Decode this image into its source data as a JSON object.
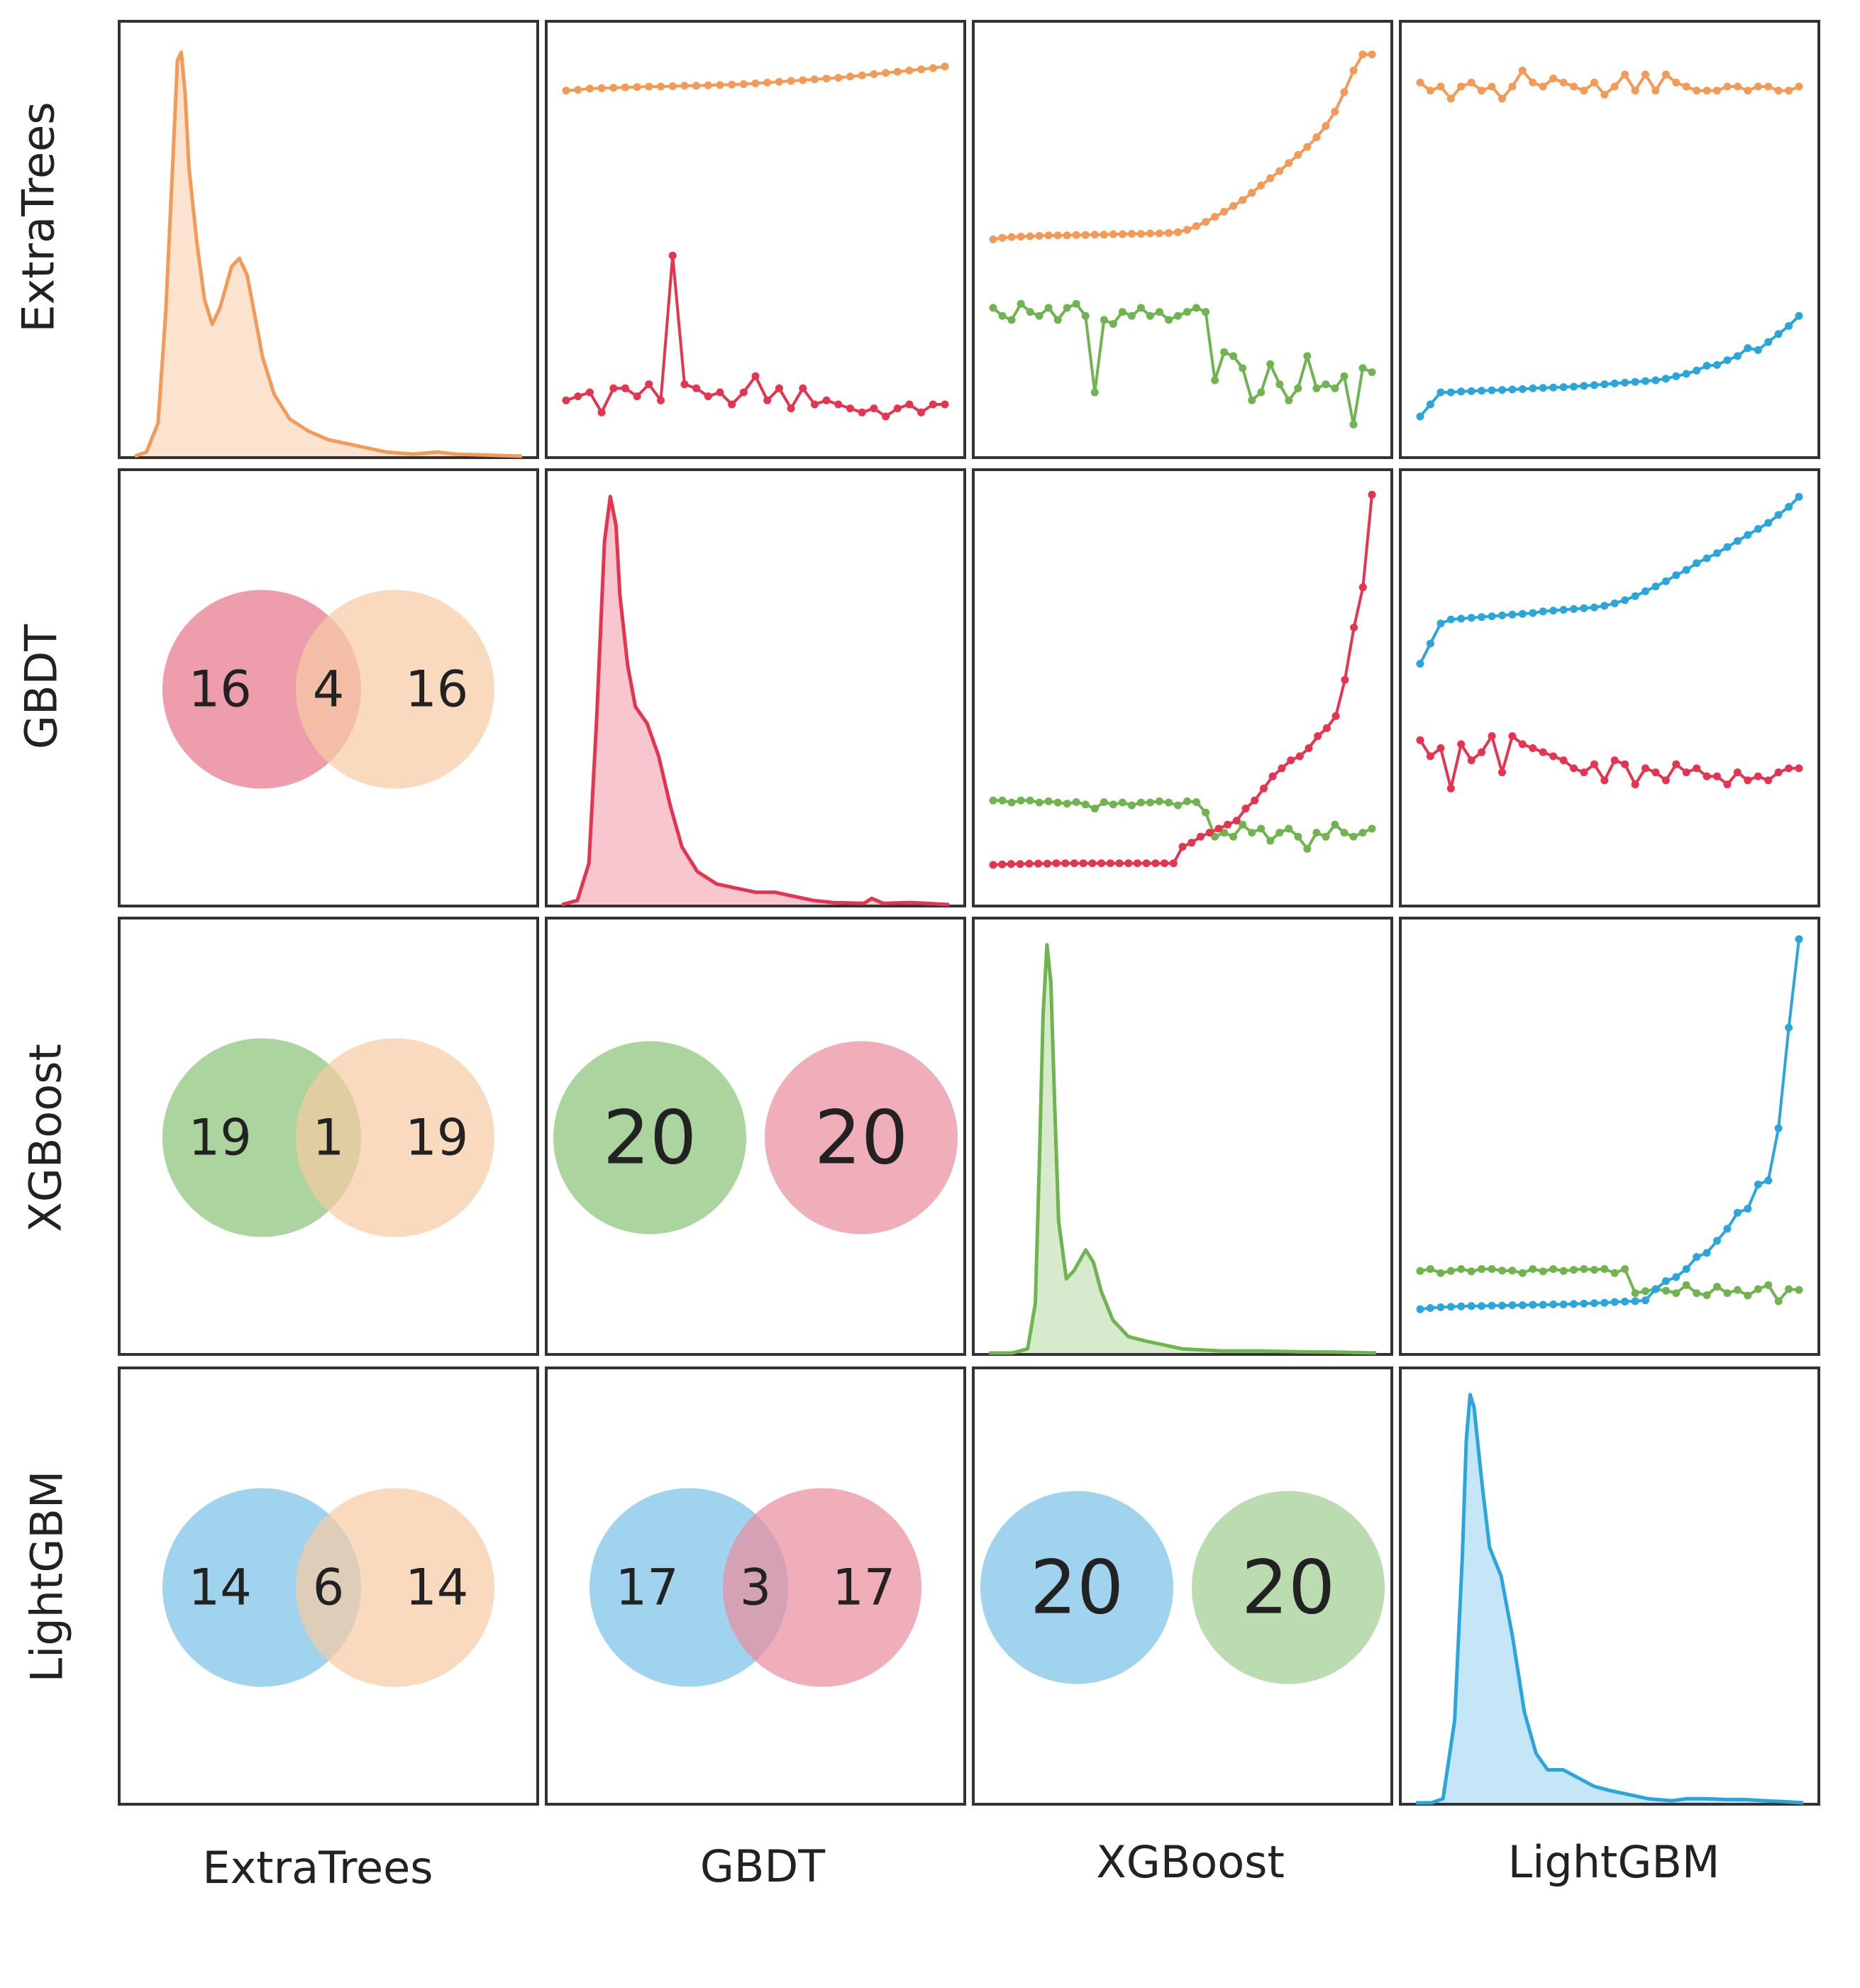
{
  "chart_data": {
    "type": "pair-grid",
    "title": "",
    "models": [
      "ExtraTrees",
      "GBDT",
      "XGBoost",
      "LightGBM"
    ],
    "row_labels": [
      "ExtraTrees",
      "GBDT",
      "XGBoost",
      "LightGBM"
    ],
    "col_labels": [
      "ExtraTrees",
      "GBDT",
      "XGBoost",
      "LightGBM"
    ],
    "colors": {
      "ExtraTrees": "#f39a57",
      "GBDT": "#e5344f",
      "XGBoost": "#6fb44f",
      "LightGBM": "#2aa6dd"
    },
    "venn_fill": {
      "ExtraTrees": "#f6caa3",
      "GBDT": "#ea8c9c",
      "XGBoost": "#9ccd8e",
      "LightGBM": "#8fcbea"
    },
    "density": {
      "x_range": [
        0,
        100
      ],
      "ExtraTrees": [
        [
          0,
          0
        ],
        [
          3,
          1
        ],
        [
          6,
          8
        ],
        [
          8,
          35
        ],
        [
          10,
          75
        ],
        [
          11,
          96
        ],
        [
          12,
          98
        ],
        [
          13,
          88
        ],
        [
          14,
          70
        ],
        [
          16,
          52
        ],
        [
          18,
          38
        ],
        [
          20,
          32
        ],
        [
          22,
          36
        ],
        [
          25,
          46
        ],
        [
          27,
          48
        ],
        [
          29,
          44
        ],
        [
          31,
          34
        ],
        [
          33,
          24
        ],
        [
          36,
          15
        ],
        [
          40,
          9
        ],
        [
          45,
          6
        ],
        [
          50,
          4
        ],
        [
          55,
          3
        ],
        [
          60,
          2
        ],
        [
          65,
          1
        ],
        [
          72,
          0.5
        ],
        [
          78,
          1
        ],
        [
          83,
          0.5
        ],
        [
          90,
          0.3
        ],
        [
          100,
          0
        ]
      ],
      "GBDT": [
        [
          0,
          0
        ],
        [
          4,
          1
        ],
        [
          7,
          10
        ],
        [
          9,
          45
        ],
        [
          11,
          88
        ],
        [
          12.5,
          99
        ],
        [
          14,
          92
        ],
        [
          15,
          75
        ],
        [
          17,
          58
        ],
        [
          19,
          48
        ],
        [
          22,
          44
        ],
        [
          25,
          36
        ],
        [
          28,
          24
        ],
        [
          31,
          14
        ],
        [
          35,
          8
        ],
        [
          40,
          5
        ],
        [
          45,
          4
        ],
        [
          50,
          3
        ],
        [
          55,
          3
        ],
        [
          60,
          2
        ],
        [
          65,
          1
        ],
        [
          70,
          0.5
        ],
        [
          78,
          0.3
        ],
        [
          80,
          1.5
        ],
        [
          83,
          0.3
        ],
        [
          90,
          0.5
        ],
        [
          100,
          0
        ]
      ],
      "XGBoost": [
        [
          0,
          0
        ],
        [
          6,
          0
        ],
        [
          10,
          1
        ],
        [
          12,
          12
        ],
        [
          13,
          45
        ],
        [
          14,
          82
        ],
        [
          15,
          99
        ],
        [
          16,
          90
        ],
        [
          17,
          60
        ],
        [
          18,
          32
        ],
        [
          20,
          18
        ],
        [
          22,
          20
        ],
        [
          25,
          25
        ],
        [
          27,
          22
        ],
        [
          29,
          15
        ],
        [
          32,
          8
        ],
        [
          36,
          4
        ],
        [
          40,
          3
        ],
        [
          45,
          2
        ],
        [
          50,
          1
        ],
        [
          60,
          0.5
        ],
        [
          70,
          0.5
        ],
        [
          80,
          0.3
        ],
        [
          90,
          0.2
        ],
        [
          100,
          0
        ]
      ],
      "LightGBM": [
        [
          0,
          0
        ],
        [
          4,
          0
        ],
        [
          7,
          1
        ],
        [
          10,
          20
        ],
        [
          12,
          60
        ],
        [
          13,
          88
        ],
        [
          14,
          99
        ],
        [
          15,
          96
        ],
        [
          17,
          78
        ],
        [
          19,
          62
        ],
        [
          22,
          55
        ],
        [
          25,
          40
        ],
        [
          28,
          22
        ],
        [
          31,
          12
        ],
        [
          34,
          8
        ],
        [
          38,
          8
        ],
        [
          42,
          6
        ],
        [
          46,
          4
        ],
        [
          50,
          3
        ],
        [
          55,
          2
        ],
        [
          60,
          1
        ],
        [
          66,
          0.5
        ],
        [
          70,
          1
        ],
        [
          75,
          1
        ],
        [
          80,
          0.8
        ],
        [
          85,
          0.8
        ],
        [
          90,
          0.5
        ],
        [
          95,
          0.3
        ],
        [
          100,
          0
        ]
      ]
    },
    "upper_panels": [
      {
        "row": "ExtraTrees",
        "col": "GBDT",
        "ylim": [
          0,
          100
        ],
        "series": [
          {
            "name": "ExtraTrees",
            "values": [
              87,
              87.2,
              87.5,
              87.6,
              87.7,
              87.8,
              87.9,
              88,
              88,
              88.1,
              88.2,
              88.2,
              88.3,
              88.4,
              88.5,
              88.6,
              88.8,
              89,
              89.2,
              89.4,
              89.6,
              89.8,
              90,
              90.2,
              90.5,
              90.8,
              91.1,
              91.4,
              91.7,
              92,
              92.3,
              92.6,
              93
            ]
          },
          {
            "name": "GBDT",
            "values": [
              10,
              11,
              12,
              7,
              13,
              13,
              11,
              14,
              10,
              46,
              14,
              13,
              11,
              12,
              9,
              12,
              16,
              10,
              13,
              8,
              13,
              9,
              10,
              9,
              8,
              7,
              8,
              6,
              8,
              9,
              7,
              9,
              9
            ]
          }
        ]
      },
      {
        "row": "ExtraTrees",
        "col": "XGBoost",
        "ylim": [
          0,
          100
        ],
        "series": [
          {
            "name": "ExtraTrees",
            "values": [
              50,
              50.4,
              50.6,
              50.7,
              50.8,
              50.9,
              51,
              51,
              51,
              51.1,
              51.1,
              51.2,
              51.2,
              51.3,
              51.3,
              51.4,
              51.4,
              51.5,
              51.5,
              51.6,
              51.8,
              52.4,
              53.3,
              54.4,
              55.6,
              56.9,
              58.3,
              59.8,
              61.6,
              63.4,
              65.2,
              67,
              69,
              71,
              73,
              75.4,
              78.2,
              81.8,
              86.6,
              92,
              96,
              96
            ]
          },
          {
            "name": "XGBoost",
            "values": [
              33,
              31,
              30,
              34,
              32,
              31,
              33,
              30,
              33,
              34,
              31,
              12,
              30,
              29,
              32,
              31,
              33,
              31,
              32,
              30,
              31,
              32,
              33,
              32,
              15,
              22,
              21,
              18,
              10,
              12,
              19,
              14,
              10,
              13,
              21,
              13,
              14,
              13,
              16,
              4,
              18,
              17
            ]
          }
        ]
      },
      {
        "row": "ExtraTrees",
        "col": "LightGBM",
        "ylim": [
          0,
          100
        ],
        "series": [
          {
            "name": "ExtraTrees",
            "values": [
              89,
              87,
              88,
              85,
              88,
              89,
              87,
              88,
              85,
              88,
              92,
              89,
              88,
              90,
              89,
              88,
              87,
              89,
              86,
              88,
              91,
              87,
              91,
              87,
              91,
              89,
              88,
              87,
              87,
              87,
              88,
              88,
              87,
              88,
              88,
              87,
              87,
              88
            ]
          },
          {
            "name": "LightGBM",
            "values": [
              6,
              9,
              12,
              12,
              12.2,
              12.3,
              12.4,
              12.5,
              12.6,
              12.7,
              12.8,
              13,
              13.1,
              13.2,
              13.3,
              13.4,
              13.6,
              13.8,
              14,
              14.2,
              14.4,
              14.6,
              14.8,
              15,
              15.4,
              16,
              16.6,
              17.4,
              18.6,
              18.8,
              20,
              21,
              23,
              22.5,
              24.5,
              26.5,
              28.5,
              31
            ]
          }
        ]
      },
      {
        "row": "GBDT",
        "col": "XGBoost",
        "ylim": [
          0,
          100
        ],
        "series": [
          {
            "name": "XGBoost",
            "values": [
              22,
              22,
              21.5,
              22,
              22,
              21.5,
              21.8,
              21.5,
              21.2,
              21.6,
              21,
              20,
              21.6,
              21,
              21.5,
              20.8,
              21.5,
              21.5,
              21.8,
              21.5,
              20.8,
              21.8,
              21.6,
              19,
              13,
              14,
              13,
              16,
              14,
              15,
              12,
              14,
              15,
              13,
              10,
              14,
              13,
              16,
              14,
              13,
              14,
              15
            ]
          },
          {
            "name": "GBDT",
            "values": [
              6,
              6.1,
              6.2,
              6.2,
              6.3,
              6.3,
              6.3,
              6.4,
              6.4,
              6.4,
              6.4,
              6.4,
              6.4,
              6.4,
              6.4,
              6.4,
              6.4,
              6.4,
              6.4,
              6.4,
              6.4,
              10.5,
              11.5,
              13,
              14,
              15,
              16,
              17,
              20,
              22,
              25,
              28,
              30,
              32,
              33,
              35,
              38,
              40,
              43,
              52,
              65,
              75,
              98
            ]
          }
        ]
      },
      {
        "row": "GBDT",
        "col": "LightGBM",
        "ylim": [
          0,
          100
        ],
        "series": [
          {
            "name": "LightGBM",
            "values": [
              56,
              61,
              66,
              67,
              67.2,
              67.4,
              67.6,
              67.8,
              68,
              68.2,
              68.4,
              68.6,
              69,
              69.2,
              69.4,
              69.6,
              69.8,
              70,
              70.4,
              71,
              71.8,
              72.8,
              74,
              75.2,
              76.5,
              78,
              79.3,
              81,
              82.2,
              83.5,
              85,
              86.5,
              88,
              89.5,
              91,
              93,
              95,
              97.5
            ]
          },
          {
            "name": "GBDT",
            "values": [
              37,
              33,
              35,
              25,
              36,
              32,
              34,
              38,
              29,
              38,
              36,
              35,
              34,
              33,
              32,
              30,
              29,
              31,
              27,
              32,
              31,
              26,
              30,
              29,
              27,
              31,
              29,
              30,
              28,
              28,
              26,
              29,
              27,
              28,
              27,
              29,
              30,
              30
            ]
          }
        ]
      },
      {
        "row": "XGBoost",
        "col": "LightGBM",
        "ylim": [
          0,
          100
        ],
        "series": [
          {
            "name": "XGBoost",
            "values": [
              16.5,
              17,
              16,
              16.5,
              17,
              16.4,
              17,
              17,
              16.6,
              16.6,
              16,
              17,
              16.4,
              17,
              16.5,
              16.8,
              17,
              16.8,
              17,
              16,
              17,
              11,
              11.5,
              12,
              11.6,
              11,
              13,
              11,
              10.5,
              12.6,
              11,
              11.8,
              10.4,
              12,
              13,
              9,
              12,
              11.8
            ]
          },
          {
            "name": "LightGBM",
            "values": [
              7,
              7.3,
              7.5,
              7.6,
              7.7,
              7.8,
              7.8,
              7.9,
              7.9,
              8,
              8,
              8.1,
              8.1,
              8.2,
              8.2,
              8.3,
              8.4,
              8.5,
              8.6,
              8.8,
              8.9,
              9,
              9.2,
              12,
              14,
              15,
              17,
              20,
              21,
              24,
              27,
              31,
              32,
              38,
              39,
              52,
              77,
              99
            ]
          }
        ]
      }
    ],
    "venn_panels": [
      {
        "row": "GBDT",
        "col": "ExtraTrees",
        "left": "GBDT",
        "right": "ExtraTrees",
        "left_only": "16",
        "overlap": "4",
        "right_only": "16"
      },
      {
        "row": "XGBoost",
        "col": "ExtraTrees",
        "left": "XGBoost",
        "right": "ExtraTrees",
        "left_only": "19",
        "overlap": "1",
        "right_only": "19"
      },
      {
        "row": "XGBoost",
        "col": "GBDT",
        "left": "XGBoost",
        "right": "GBDT",
        "left_only": "20",
        "overlap": "",
        "right_only": "20"
      },
      {
        "row": "LightGBM",
        "col": "ExtraTrees",
        "left": "LightGBM",
        "right": "ExtraTrees",
        "left_only": "14",
        "overlap": "6",
        "right_only": "14"
      },
      {
        "row": "LightGBM",
        "col": "GBDT",
        "left": "LightGBM",
        "right": "GBDT",
        "left_only": "17",
        "overlap": "3",
        "right_only": "17"
      },
      {
        "row": "LightGBM",
        "col": "XGBoost",
        "left": "LightGBM",
        "right": "XGBoost",
        "left_only": "20",
        "overlap": "",
        "right_only": "20"
      }
    ]
  }
}
